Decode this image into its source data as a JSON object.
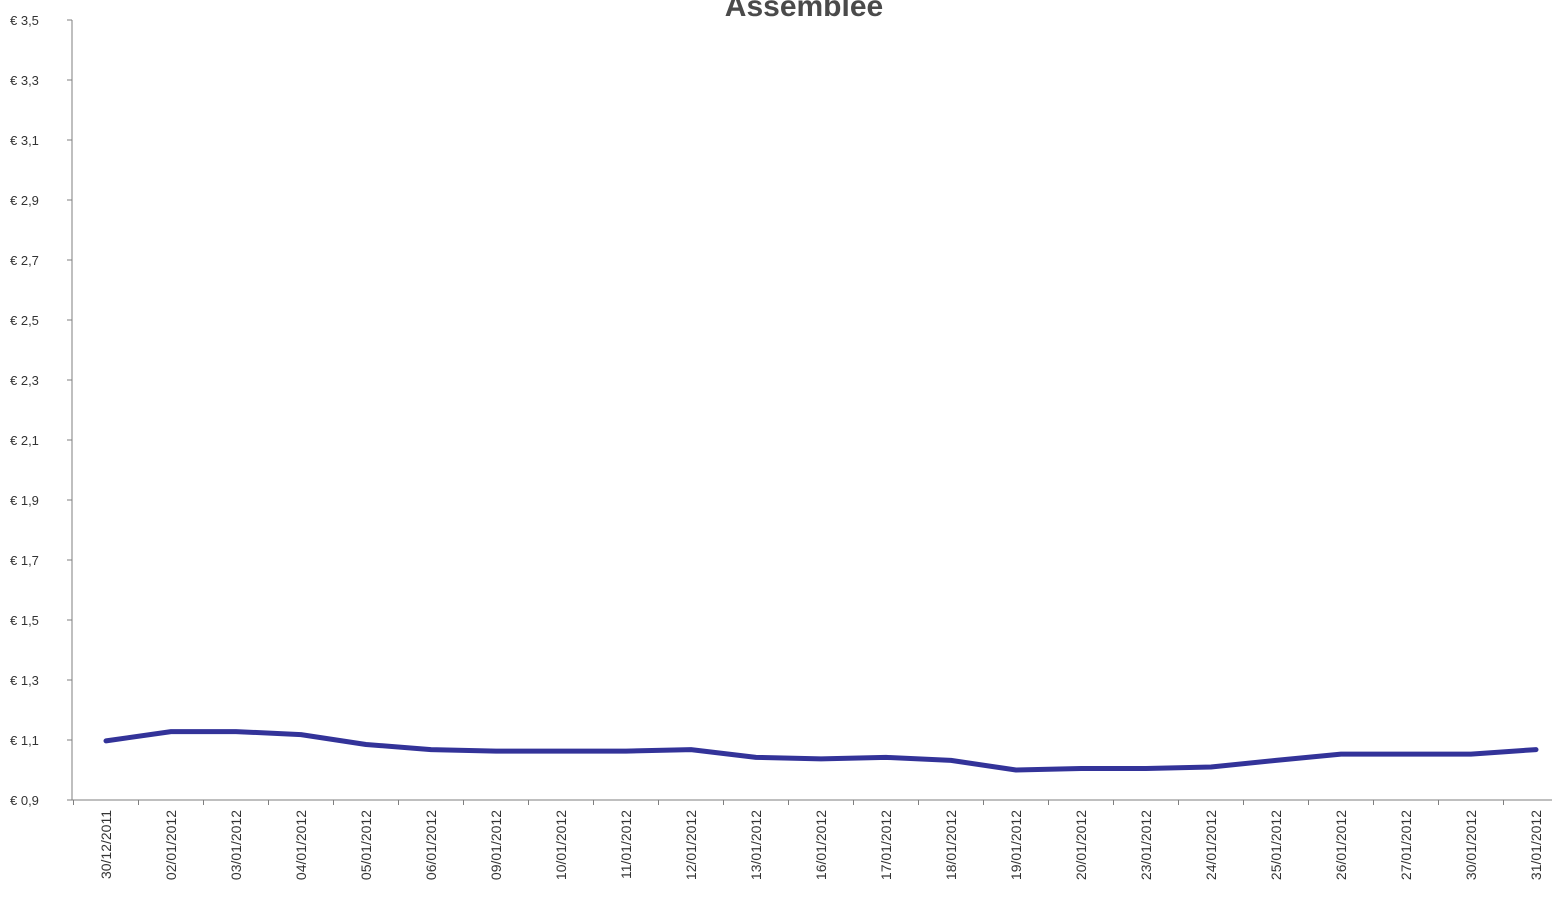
{
  "chart_data": {
    "type": "line",
    "title": "Assemblee",
    "xlabel": "",
    "ylabel": "",
    "ylim": [
      0.9,
      3.5
    ],
    "yticks": [
      0.9,
      1.1,
      1.3,
      1.5,
      1.7,
      1.9,
      2.1,
      2.3,
      2.5,
      2.7,
      2.9,
      3.1,
      3.3,
      3.5
    ],
    "ytick_labels": [
      "€ 0,9",
      "€ 1,1",
      "€ 1,3",
      "€ 1,5",
      "€ 1,7",
      "€ 1,9",
      "€ 2,1",
      "€ 2,3",
      "€ 2,5",
      "€ 2,7",
      "€ 2,9",
      "€ 3,1",
      "€ 3,3",
      "€ 3,5"
    ],
    "grid": false,
    "colors": {
      "series": "#333399",
      "axis": "#7f7f7f"
    },
    "categories": [
      "30/12/2011",
      "02/01/2012",
      "03/01/2012",
      "04/01/2012",
      "05/01/2012",
      "06/01/2012",
      "09/01/2012",
      "10/01/2012",
      "11/01/2012",
      "12/01/2012",
      "13/01/2012",
      "16/01/2012",
      "17/01/2012",
      "18/01/2012",
      "19/01/2012",
      "20/01/2012",
      "23/01/2012",
      "24/01/2012",
      "25/01/2012",
      "26/01/2012",
      "27/01/2012",
      "30/01/2012",
      "31/01/2012"
    ],
    "series": [
      {
        "values": [
          1.097,
          1.128,
          1.128,
          1.118,
          1.085,
          1.068,
          1.063,
          1.063,
          1.063,
          1.068,
          1.042,
          1.037,
          1.042,
          1.032,
          1.0,
          1.005,
          1.005,
          1.01,
          1.032,
          1.053,
          1.053,
          1.053,
          1.068
        ]
      }
    ]
  }
}
